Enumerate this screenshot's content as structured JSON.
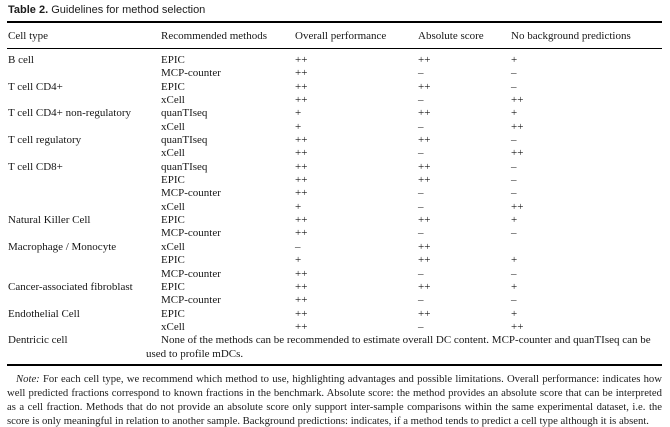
{
  "caption": {
    "label": "Table 2.",
    "text": "Guidelines for method selection"
  },
  "table": {
    "columns": [
      "Cell type",
      "Recommended methods",
      "Overall performance",
      "Absolute score",
      "No background predictions"
    ],
    "rows": [
      {
        "cell_type": "B cell",
        "method": "EPIC",
        "overall": "++",
        "absolute": "++",
        "background": "+"
      },
      {
        "cell_type": "",
        "method": "MCP-counter",
        "overall": "++",
        "absolute": "–",
        "background": "–"
      },
      {
        "cell_type": "T cell CD4+",
        "method": "EPIC",
        "overall": "++",
        "absolute": "++",
        "background": "–"
      },
      {
        "cell_type": "",
        "method": "xCell",
        "overall": "++",
        "absolute": "–",
        "background": "++"
      },
      {
        "cell_type": "T cell CD4+ non-regulatory",
        "method": "quanTIseq",
        "overall": "+",
        "absolute": "++",
        "background": "+"
      },
      {
        "cell_type": "",
        "method": "xCell",
        "overall": "+",
        "absolute": "–",
        "background": "++"
      },
      {
        "cell_type": "T cell regulatory",
        "method": "quanTIseq",
        "overall": "++",
        "absolute": "++",
        "background": "–"
      },
      {
        "cell_type": "",
        "method": "xCell",
        "overall": "++",
        "absolute": "–",
        "background": "++"
      },
      {
        "cell_type": "T cell CD8+",
        "method": "quanTIseq",
        "overall": "++",
        "absolute": "++",
        "background": "–"
      },
      {
        "cell_type": "",
        "method": "EPIC",
        "overall": "++",
        "absolute": "++",
        "background": "–"
      },
      {
        "cell_type": "",
        "method": "MCP-counter",
        "overall": "++",
        "absolute": "–",
        "background": "–"
      },
      {
        "cell_type": "",
        "method": "xCell",
        "overall": "+",
        "absolute": "–",
        "background": "++"
      },
      {
        "cell_type": "Natural Killer Cell",
        "method": "EPIC",
        "overall": "++",
        "absolute": "++",
        "background": "+"
      },
      {
        "cell_type": "",
        "method": "MCP-counter",
        "overall": "++",
        "absolute": "–",
        "background": "–"
      },
      {
        "cell_type": "Macrophage / Monocyte",
        "method": "xCell",
        "overall": "–",
        "absolute": "++",
        "background": ""
      },
      {
        "cell_type": "",
        "method": "EPIC",
        "overall": "+",
        "absolute": "++",
        "background": "+"
      },
      {
        "cell_type": "",
        "method": "MCP-counter",
        "overall": "++",
        "absolute": "–",
        "background": "–"
      },
      {
        "cell_type": "Cancer-associated fibroblast",
        "method": "EPIC",
        "overall": "++",
        "absolute": "++",
        "background": "+"
      },
      {
        "cell_type": "",
        "method": "MCP-counter",
        "overall": "++",
        "absolute": "–",
        "background": "–"
      },
      {
        "cell_type": "Endothelial Cell",
        "method": "EPIC",
        "overall": "++",
        "absolute": "++",
        "background": "+"
      },
      {
        "cell_type": "",
        "method": "xCell",
        "overall": "++",
        "absolute": "–",
        "background": "++"
      }
    ],
    "footer_row": {
      "cell_type": "Dentricic cell",
      "text": "None of the methods can be recommended to estimate overall DC content. MCP-counter and quanTIseq can be used to profile mDCs."
    }
  },
  "note": {
    "label": "Note:",
    "text": "For each cell type, we recommend which method to use, highlighting advantages and possible limitations. Overall performance: indicates how well predicted fractions correspond to known fractions in the benchmark. Absolute score: the method provides an absolute score that can be interpreted as a cell fraction. Methods that do not provide an absolute score only support inter-sample comparisons within the same experimental dataset, i.e. the score is only meaningful in relation to another sample. Background predictions: indicates, if a method tends to predict a cell type although it is absent."
  }
}
